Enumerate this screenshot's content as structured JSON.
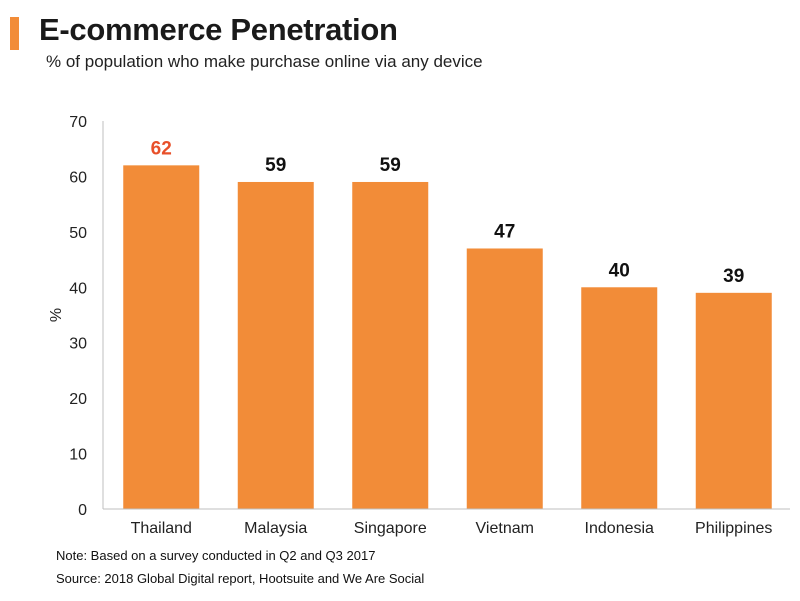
{
  "title": "E-commerce Penetration",
  "subtitle": "% of population who make purchase online via any device",
  "notes": {
    "note": "Note: Based on a survey conducted in Q2 and Q3 2017",
    "source": "Source: 2018 Global Digital report, Hootsuite and We Are Social"
  },
  "colors": {
    "accent": "#F28C38",
    "bar": "#F28C38",
    "highlight_label": "#E8502A",
    "label": "#111111"
  },
  "chart_data": {
    "type": "bar",
    "title": "E-commerce Penetration",
    "subtitle": "% of population who make purchase online via any device",
    "xlabel": "",
    "ylabel": "%",
    "ylim": [
      0,
      70
    ],
    "yticks": [
      0,
      10,
      20,
      30,
      40,
      50,
      60,
      70
    ],
    "grid": false,
    "legend": "none",
    "categories": [
      "Thailand",
      "Malaysia",
      "Singapore",
      "Vietnam",
      "Indonesia",
      "Philippines"
    ],
    "values": [
      62,
      59,
      59,
      47,
      40,
      39
    ],
    "data_labels": [
      "62",
      "59",
      "59",
      "47",
      "40",
      "39"
    ],
    "highlighted_category": "Thailand"
  }
}
